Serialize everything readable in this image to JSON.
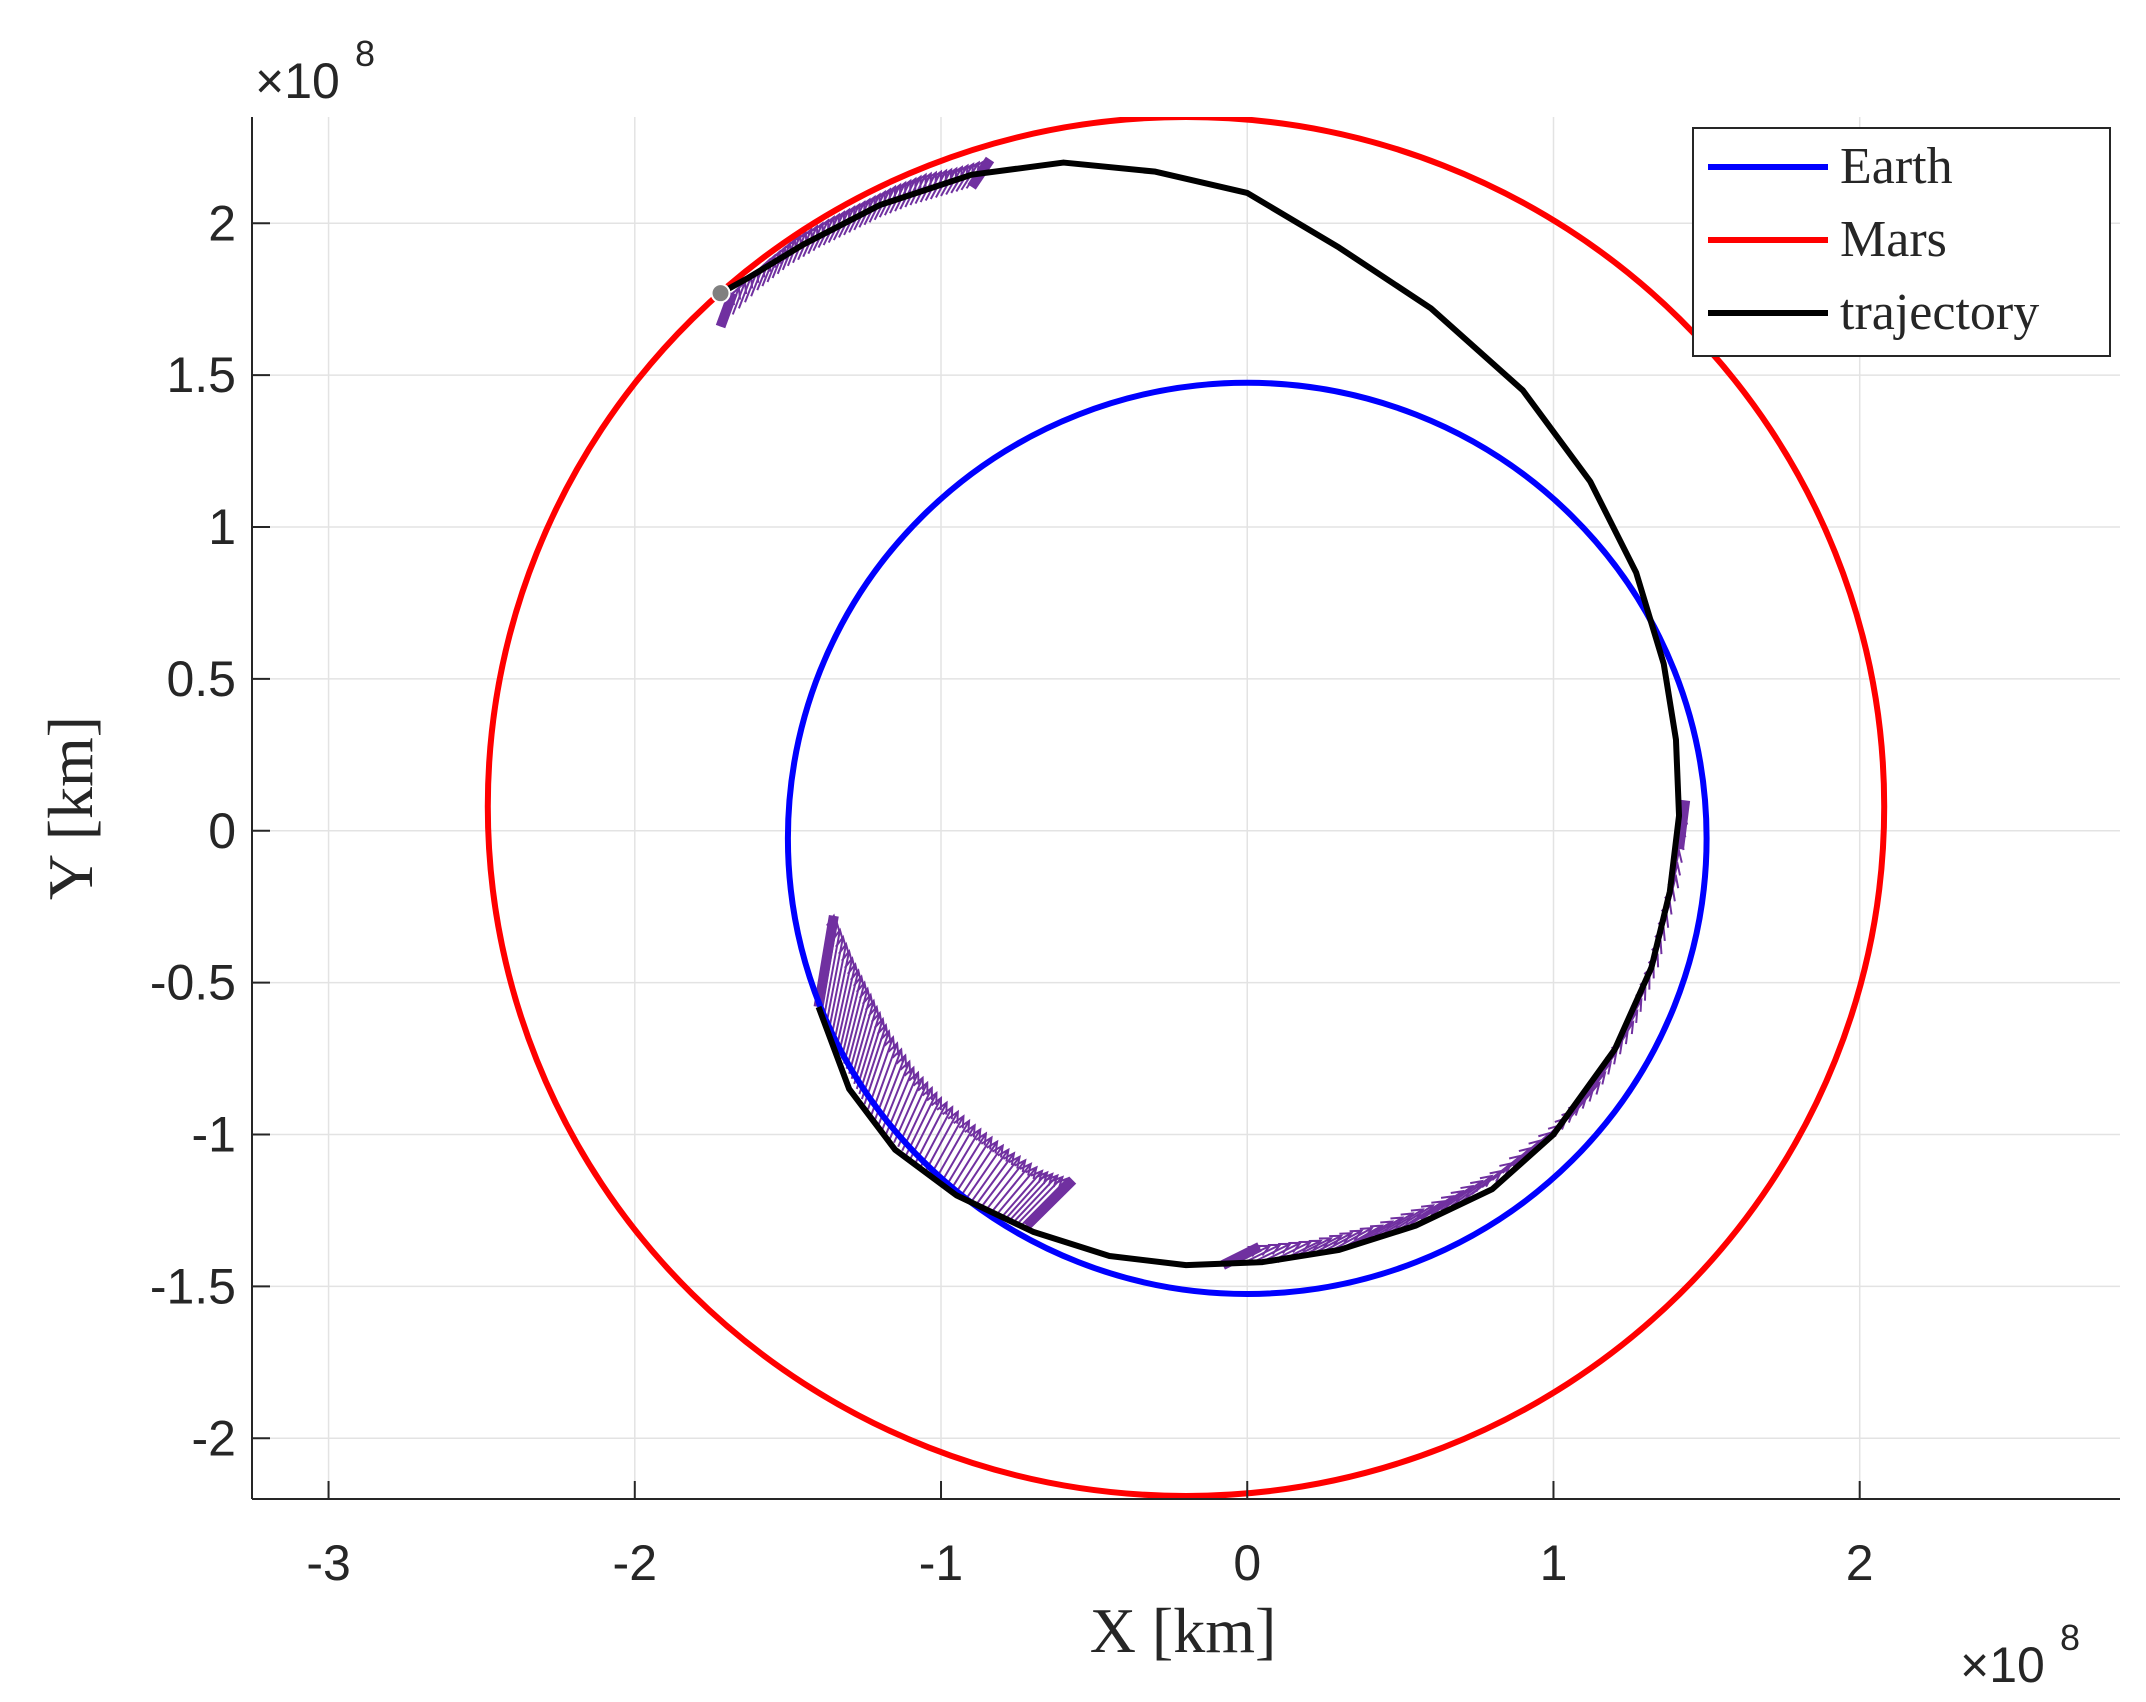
{
  "chart_data": {
    "type": "line",
    "xlabel": "X [km]",
    "ylabel": "Y [km]",
    "x_exponent": {
      "base": "×10",
      "power": "8"
    },
    "y_exponent": {
      "base": "×10",
      "power": "8"
    },
    "xlim": [
      -3.25,
      2.85
    ],
    "ylim": [
      -2.2,
      2.35
    ],
    "x_ticks": [
      -3,
      -2,
      -1,
      0,
      1,
      2
    ],
    "x_tick_labels": [
      "-3",
      "-2",
      "-1",
      "0",
      "1",
      "2"
    ],
    "y_ticks": [
      -2,
      -1.5,
      -1,
      -0.5,
      0,
      0.5,
      1,
      1.5,
      2
    ],
    "y_tick_labels": [
      "-2",
      "-1.5",
      "-1",
      "-0.5",
      "0",
      "0.5",
      "1",
      "1.5",
      "2"
    ],
    "grid": true,
    "legend_position": "top-right",
    "units_note": "values in units of 10^8 km",
    "series": [
      {
        "name": "Earth",
        "color": "#0000ff",
        "shape": "ellipse",
        "center": [
          0.0,
          -0.025
        ],
        "radii": [
          1.5,
          1.5
        ],
        "tilt_deg": 0
      },
      {
        "name": "Mars",
        "color": "#ff0000",
        "shape": "ellipse",
        "center": [
          -0.2,
          0.08
        ],
        "radii": [
          2.28,
          2.27
        ],
        "tilt_deg": 0
      },
      {
        "name": "trajectory",
        "color": "#000000",
        "shape": "polyline",
        "points": [
          [
            -1.4,
            -0.58
          ],
          [
            -1.3,
            -0.85
          ],
          [
            -1.15,
            -1.05
          ],
          [
            -0.95,
            -1.2
          ],
          [
            -0.7,
            -1.32
          ],
          [
            -0.45,
            -1.4
          ],
          [
            -0.2,
            -1.43
          ],
          [
            0.05,
            -1.42
          ],
          [
            0.3,
            -1.38
          ],
          [
            0.55,
            -1.3
          ],
          [
            0.8,
            -1.18
          ],
          [
            1.0,
            -1.0
          ],
          [
            1.2,
            -0.72
          ],
          [
            1.32,
            -0.45
          ],
          [
            1.38,
            -0.2
          ],
          [
            1.41,
            0.05
          ],
          [
            1.4,
            0.3
          ],
          [
            1.36,
            0.55
          ],
          [
            1.27,
            0.85
          ],
          [
            1.12,
            1.15
          ],
          [
            0.9,
            1.45
          ],
          [
            0.6,
            1.72
          ],
          [
            0.3,
            1.92
          ],
          [
            0.0,
            2.1
          ],
          [
            -0.3,
            2.17
          ],
          [
            -0.6,
            2.2
          ],
          [
            -0.9,
            2.16
          ],
          [
            -1.2,
            2.06
          ],
          [
            -1.45,
            1.93
          ],
          [
            -1.63,
            1.82
          ],
          [
            -1.72,
            1.77
          ]
        ]
      }
    ],
    "thrust_arcs": [
      {
        "color": "#7030a0",
        "points": [
          [
            -1.4,
            -0.58
          ],
          [
            -1.35,
            -0.7
          ],
          [
            -1.3,
            -0.8
          ],
          [
            -1.25,
            -0.9
          ],
          [
            -1.18,
            -1.0
          ],
          [
            -1.1,
            -1.08
          ],
          [
            -1.0,
            -1.16
          ],
          [
            -0.9,
            -1.22
          ],
          [
            -0.8,
            -1.27
          ],
          [
            -0.72,
            -1.3
          ]
        ],
        "vectors": [
          [
            0.05,
            0.3
          ],
          [
            0.06,
            0.28
          ],
          [
            0.07,
            0.26
          ],
          [
            0.08,
            0.24
          ],
          [
            0.09,
            0.22
          ],
          [
            0.1,
            0.2
          ],
          [
            0.11,
            0.19
          ],
          [
            0.12,
            0.17
          ],
          [
            0.13,
            0.15
          ],
          [
            0.15,
            0.15
          ]
        ]
      },
      {
        "color": "#7030a0",
        "points": [
          [
            -0.08,
            -1.43
          ],
          [
            0.1,
            -1.42
          ],
          [
            0.3,
            -1.38
          ],
          [
            0.5,
            -1.31
          ],
          [
            0.7,
            -1.22
          ],
          [
            0.9,
            -1.08
          ],
          [
            1.05,
            -0.95
          ],
          [
            1.18,
            -0.76
          ],
          [
            1.28,
            -0.55
          ],
          [
            1.36,
            -0.3
          ],
          [
            1.41,
            -0.06
          ]
        ],
        "vectors": [
          [
            0.12,
            0.06
          ],
          [
            0.14,
            0.07
          ],
          [
            0.14,
            0.08
          ],
          [
            0.14,
            0.09
          ],
          [
            0.13,
            0.1
          ],
          [
            0.12,
            0.11
          ],
          [
            0.1,
            0.12
          ],
          [
            0.08,
            0.13
          ],
          [
            0.06,
            0.14
          ],
          [
            0.04,
            0.15
          ],
          [
            0.02,
            0.16
          ]
        ]
      },
      {
        "color": "#7030a0",
        "points": [
          [
            -1.72,
            1.66
          ],
          [
            -1.6,
            1.78
          ],
          [
            -1.5,
            1.86
          ],
          [
            -1.4,
            1.92
          ],
          [
            -1.3,
            1.97
          ],
          [
            -1.2,
            2.02
          ],
          [
            -1.1,
            2.06
          ],
          [
            -1.0,
            2.09
          ],
          [
            -0.9,
            2.12
          ]
        ],
        "vectors": [
          [
            0.04,
            0.11
          ],
          [
            0.04,
            0.1
          ],
          [
            0.04,
            0.1
          ],
          [
            0.05,
            0.1
          ],
          [
            0.05,
            0.1
          ],
          [
            0.05,
            0.1
          ],
          [
            0.05,
            0.1
          ],
          [
            0.05,
            0.09
          ],
          [
            0.06,
            0.09
          ]
        ]
      }
    ],
    "markers": [
      {
        "x": -1.72,
        "y": 1.77,
        "color": "#808080"
      }
    ]
  }
}
